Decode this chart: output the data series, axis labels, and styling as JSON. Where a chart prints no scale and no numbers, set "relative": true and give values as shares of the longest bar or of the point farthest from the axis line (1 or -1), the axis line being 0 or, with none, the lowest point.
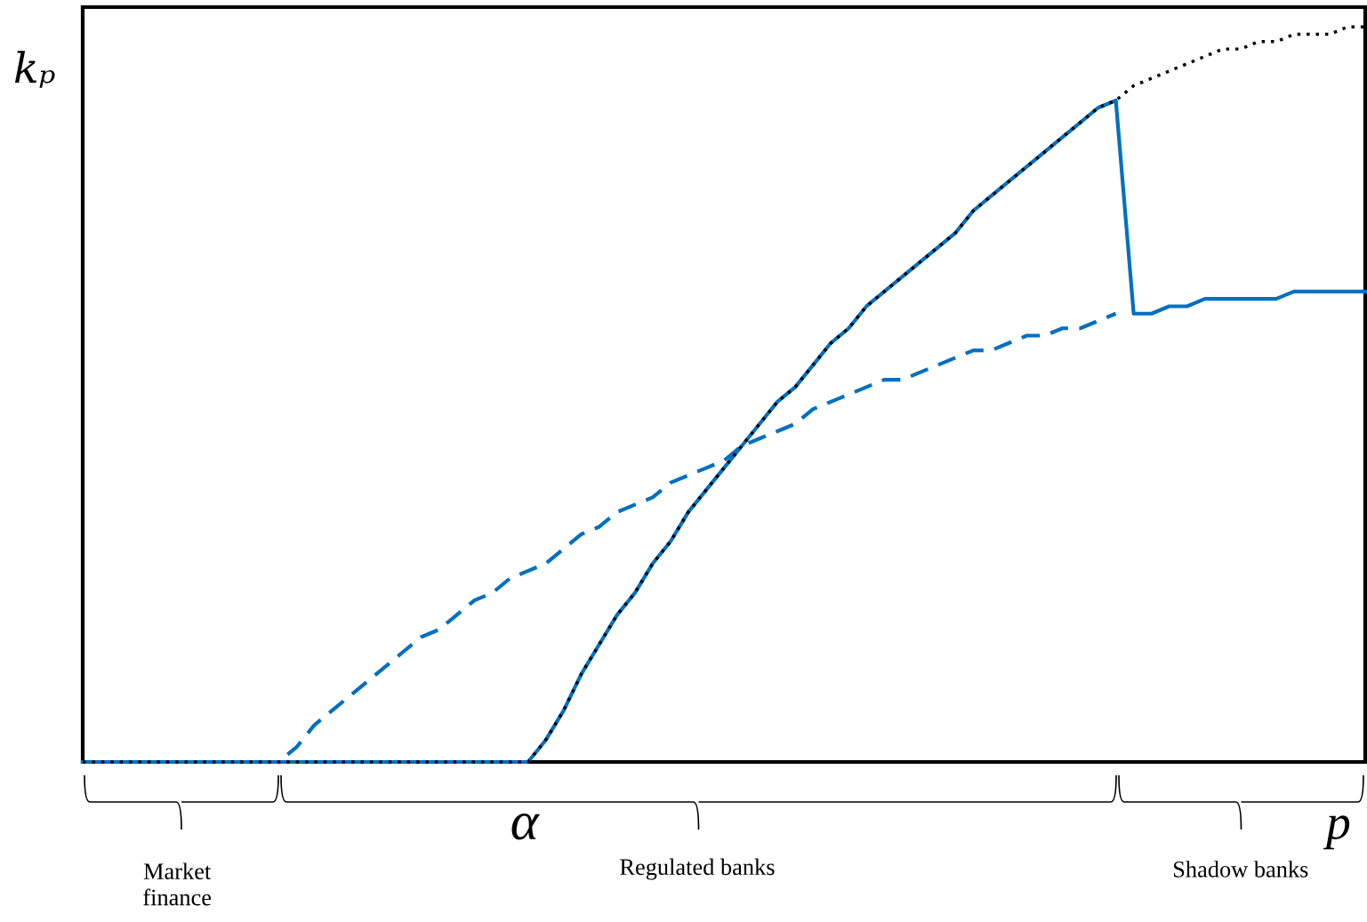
{
  "chart_data": {
    "type": "line",
    "relative": true,
    "ylabel": "kₚ",
    "xlabel": "p",
    "categories": [
      null,
      null,
      null,
      null,
      null,
      null,
      null,
      null,
      null,
      null,
      null,
      null,
      null,
      null,
      null,
      null,
      null,
      null,
      null,
      null,
      null,
      null,
      null,
      null,
      null,
      null,
      null,
      null,
      null,
      null,
      null,
      null,
      null,
      null,
      null,
      null,
      null,
      null,
      null,
      null,
      null,
      null,
      null,
      null,
      null,
      null,
      null,
      null,
      null,
      null,
      null,
      null,
      null,
      null,
      null,
      null,
      null,
      null,
      null,
      null,
      null,
      null,
      null,
      null,
      null,
      null,
      null,
      null,
      null,
      null,
      null,
      null,
      null
    ],
    "series": [
      {
        "color": "#0070c0",
        "line_style": "solid",
        "values": [
          0,
          0,
          0,
          0,
          0,
          0,
          0,
          0,
          0,
          0,
          0,
          0,
          0,
          0,
          0,
          0,
          0,
          0,
          0,
          0,
          0,
          0,
          0,
          0,
          0,
          0,
          0.03,
          0.07,
          0.12,
          0.16,
          0.2,
          0.23,
          0.27,
          0.3,
          0.34,
          0.37,
          0.4,
          0.43,
          0.46,
          0.49,
          0.51,
          0.54,
          0.57,
          0.59,
          0.62,
          0.64,
          0.66,
          0.68,
          0.7,
          0.72,
          0.75,
          0.77,
          0.79,
          0.81,
          0.83,
          0.85,
          0.87,
          0.89,
          0.9,
          0.61,
          0.61,
          0.62,
          0.62,
          0.63,
          0.63,
          0.63,
          0.63,
          0.63,
          0.64,
          0.64,
          0.64,
          0.64,
          0.64
        ]
      },
      {
        "color": "#0070c0",
        "line_style": "dashed",
        "values": [
          0,
          0,
          0,
          0,
          0,
          0,
          0,
          0,
          0,
          0,
          0,
          0,
          0.02,
          0.05,
          0.07,
          0.09,
          0.11,
          0.13,
          0.15,
          0.17,
          0.18,
          0.2,
          0.22,
          0.23,
          0.25,
          0.26,
          0.27,
          0.29,
          0.31,
          0.32,
          0.34,
          0.35,
          0.36,
          0.38,
          0.39,
          0.4,
          0.41,
          0.43,
          0.44,
          0.45,
          0.46,
          0.48,
          0.49,
          0.5,
          0.51,
          0.52,
          0.52,
          0.53,
          0.54,
          0.55,
          0.56,
          0.56,
          0.57,
          0.58,
          0.58,
          0.59,
          0.59,
          0.6,
          0.61,
          null,
          null,
          null,
          null,
          null,
          null,
          null,
          null,
          null,
          null,
          null,
          null,
          null,
          null
        ]
      },
      {
        "color": "#000000",
        "line_style": "dotted",
        "values": [
          0,
          0,
          0,
          0,
          0,
          0,
          0,
          0,
          0,
          0,
          0,
          0,
          0,
          0,
          0,
          0,
          0,
          0,
          0,
          0,
          0,
          0,
          0,
          0,
          0,
          0,
          0.03,
          0.07,
          0.12,
          0.16,
          0.2,
          0.23,
          0.27,
          0.3,
          0.34,
          0.37,
          0.4,
          0.43,
          0.46,
          0.49,
          0.51,
          0.54,
          0.57,
          0.59,
          0.62,
          0.64,
          0.66,
          0.68,
          0.7,
          0.72,
          0.75,
          0.77,
          0.79,
          0.81,
          0.83,
          0.85,
          0.87,
          0.89,
          0.9,
          0.92,
          0.93,
          0.94,
          0.95,
          0.96,
          0.97,
          0.97,
          0.98,
          0.98,
          0.99,
          0.99,
          0.99,
          1.0,
          1.0
        ]
      }
    ],
    "annotations": [
      "α",
      "Market\nfinance",
      "Regulated banks",
      "Shadow banks"
    ]
  }
}
